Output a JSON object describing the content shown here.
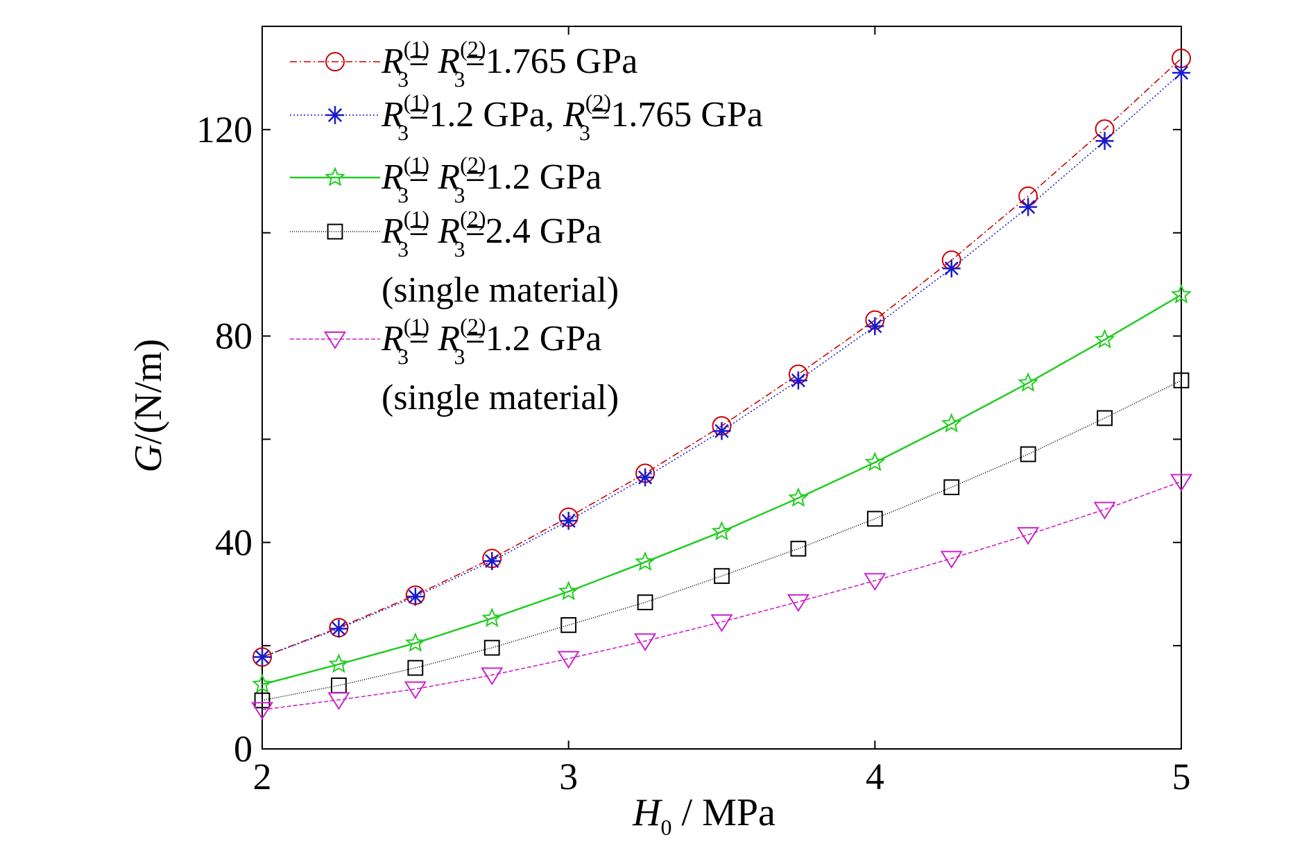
{
  "chart_data": {
    "type": "line",
    "title": "",
    "xlabel": {
      "symbol": "H",
      "sub": "0",
      "unit": " / MPa"
    },
    "ylabel": {
      "symbol": "G",
      "unit": "/(N/m)"
    },
    "xlim": [
      2,
      5
    ],
    "ylim": [
      0,
      140
    ],
    "xticks": [
      2,
      3,
      4,
      5
    ],
    "yticks": [
      0,
      40,
      80,
      120
    ],
    "yminor": [
      20,
      60,
      100
    ],
    "grid": false,
    "legend_position": "top-left",
    "x": [
      2.0,
      2.25,
      2.5,
      2.75,
      3.0,
      3.25,
      3.5,
      3.75,
      4.0,
      4.25,
      4.5,
      4.75,
      5.0
    ],
    "series": [
      {
        "label": "R3(1)= R3(2)=1.765 GPa",
        "legend": {
          "sym1": "R",
          "sub1": "3",
          "sup1": "(1)",
          "sym2": "R",
          "sub2": "3",
          "sup2": "(2)",
          "mid": "= ",
          "tail": "=1.765 GPa",
          "extra": ""
        },
        "color": "#cc0000",
        "marker": "circle",
        "dash": "10,4,2,4",
        "values": [
          17.8,
          23.5,
          29.8,
          36.9,
          44.9,
          53.4,
          62.6,
          72.6,
          83.1,
          94.7,
          107.1,
          120.1,
          133.8
        ]
      },
      {
        "label": "R3(1)=1.2 GPa, R3(2)=1.765 GPa",
        "legend": {
          "sym1": "R",
          "sub1": "3",
          "sup1": "(1)",
          "sym2": "R",
          "sub2": "3",
          "sup2": "(2)",
          "mid": "=1.2 GPa, ",
          "tail": "=1.765 GPa",
          "extra": ""
        },
        "color": "#1a1acc",
        "marker": "asterisk",
        "dash": "2,3",
        "values": [
          17.8,
          23.3,
          29.5,
          36.4,
          44.2,
          52.6,
          61.6,
          71.4,
          81.9,
          93.1,
          105.0,
          117.8,
          131.0
        ]
      },
      {
        "label": "R3(1)= R3(2)=1.2 GPa",
        "legend": {
          "sym1": "R",
          "sub1": "3",
          "sup1": "(1)",
          "sym2": "R",
          "sub2": "3",
          "sup2": "(2)",
          "mid": "= ",
          "tail": "=1.2 GPa",
          "extra": ""
        },
        "color": "#22cc22",
        "marker": "star",
        "dash": "",
        "values": [
          12.5,
          16.4,
          20.5,
          25.3,
          30.5,
          36.2,
          42.1,
          48.6,
          55.5,
          63.0,
          70.9,
          79.3,
          88.0
        ]
      },
      {
        "label": "R3(1)= R3(2)=2.4 GPa (single material)",
        "legend": {
          "sym1": "R",
          "sub1": "3",
          "sup1": "(1)",
          "sym2": "R",
          "sub2": "3",
          "sup2": "(2)",
          "mid": "= ",
          "tail": "=2.4 GPa",
          "extra": "(single material)"
        },
        "color": "#000000",
        "marker": "square",
        "dash": "1,2",
        "values": [
          9.4,
          12.3,
          15.7,
          19.6,
          24.0,
          28.4,
          33.5,
          38.8,
          44.6,
          50.7,
          57.1,
          64.1,
          71.4
        ]
      },
      {
        "label": "R3(1)= R3(2)=1.2 GPa (single material)",
        "legend": {
          "sym1": "R",
          "sub1": "3",
          "sup1": "(1)",
          "sym2": "R",
          "sub2": "3",
          "sup2": "(2)",
          "mid": "= ",
          "tail": "=1.2 GPa",
          "extra": "(single material)"
        },
        "color": "#cc22cc",
        "marker": "triangle-down",
        "dash": "6,3",
        "values": [
          7.6,
          9.5,
          11.6,
          14.3,
          17.5,
          20.9,
          24.6,
          28.5,
          32.6,
          36.9,
          41.5,
          46.4,
          51.8
        ]
      }
    ]
  }
}
